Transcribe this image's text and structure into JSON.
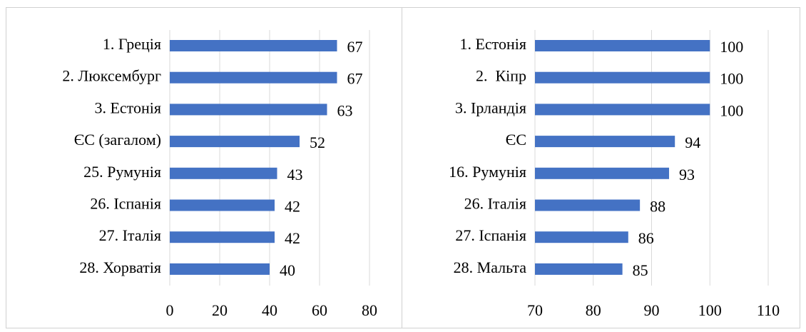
{
  "chart_data": [
    {
      "type": "bar",
      "orientation": "horizontal",
      "categories": [
        "1. Греція",
        "2. Люксембург",
        "3. Естонія",
        "ЄС (загалом)",
        "25. Румунія",
        "26. Іспанія",
        "27. Італія",
        "28. Хорватія"
      ],
      "values": [
        67,
        67,
        63,
        52,
        43,
        42,
        42,
        40
      ],
      "color": "#4472c4",
      "xlim": [
        0,
        80
      ],
      "xticks": [
        0,
        20,
        40,
        60,
        80
      ],
      "grid": true
    },
    {
      "type": "bar",
      "orientation": "horizontal",
      "categories": [
        "1. Естонія",
        "2.  Кіпр",
        "3. Ірландія",
        "ЄС",
        "16. Румунія",
        "26. Італія",
        "27. Іспанія",
        "28. Мальта"
      ],
      "values": [
        100,
        100,
        100,
        94,
        93,
        88,
        86,
        85
      ],
      "color": "#4472c4",
      "xlim": [
        70,
        110
      ],
      "xticks": [
        70,
        80,
        90,
        100,
        110
      ],
      "grid": true
    }
  ]
}
